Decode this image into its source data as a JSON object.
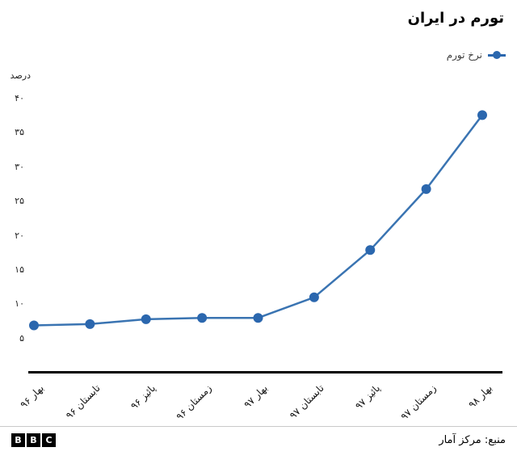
{
  "title": "تورم در ایران",
  "legend": {
    "label": "نرخ تورم"
  },
  "y_axis_title": "درصد",
  "footer": {
    "source": "منبع: مرکز آمار",
    "logo_letters": [
      "B",
      "B",
      "C"
    ]
  },
  "colors": {
    "line": "#3a74b2",
    "dot": "#2b67ae",
    "axis": "#000000",
    "text": "#222222",
    "divider": "#c9c9c9"
  },
  "chart_data": {
    "type": "line",
    "title": "تورم در ایران",
    "ylabel": "درصد",
    "categories": [
      "بهار ۹۶",
      "تابستان ۹۶",
      "پائیز ۹۶",
      "زمستان ۹۶",
      "بهار ۹۷",
      "تابستان ۹۷",
      "پائیز ۹۷",
      "زمستان ۹۷",
      "بهار ۹۸"
    ],
    "series": [
      {
        "name": "نرخ تورم",
        "values": [
          6.9,
          7.1,
          7.8,
          8.0,
          8.0,
          11.0,
          17.9,
          26.8,
          37.6
        ]
      }
    ],
    "ylim": [
      0,
      40
    ],
    "yticks": [
      {
        "value": 5,
        "label": "۵"
      },
      {
        "value": 10,
        "label": "۱۰"
      },
      {
        "value": 15,
        "label": "۱۵"
      },
      {
        "value": 20,
        "label": "۲۰"
      },
      {
        "value": 25,
        "label": "۲۵"
      },
      {
        "value": 30,
        "label": "۳۰"
      },
      {
        "value": 35,
        "label": "۳۵"
      },
      {
        "value": 40,
        "label": "۴۰"
      }
    ],
    "grid": false,
    "legend_position": "top-right"
  }
}
